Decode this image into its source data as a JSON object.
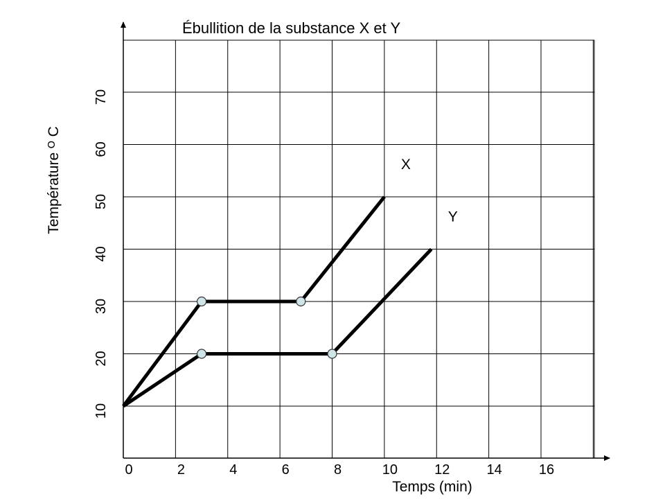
{
  "chart_data": {
    "type": "line",
    "title": "Ébullition de la substance X et Y",
    "xlabel": "Temps (min)",
    "ylabel": "Température ᴼ C",
    "xlim": [
      0,
      18
    ],
    "ylim": [
      2,
      80
    ],
    "x_ticks": [
      0,
      2,
      4,
      6,
      8,
      10,
      12,
      14,
      16
    ],
    "y_ticks": [
      10,
      20,
      30,
      40,
      50,
      60,
      70
    ],
    "grid": true,
    "series": [
      {
        "name": "X",
        "x": [
          0,
          3,
          6.8,
          10
        ],
        "y": [
          10,
          30,
          30,
          50
        ],
        "markers": [
          1,
          2
        ]
      },
      {
        "name": "Y",
        "x": [
          0,
          3,
          8,
          11.8
        ],
        "y": [
          10,
          20,
          20,
          40
        ],
        "markers": [
          1,
          2
        ]
      }
    ]
  }
}
